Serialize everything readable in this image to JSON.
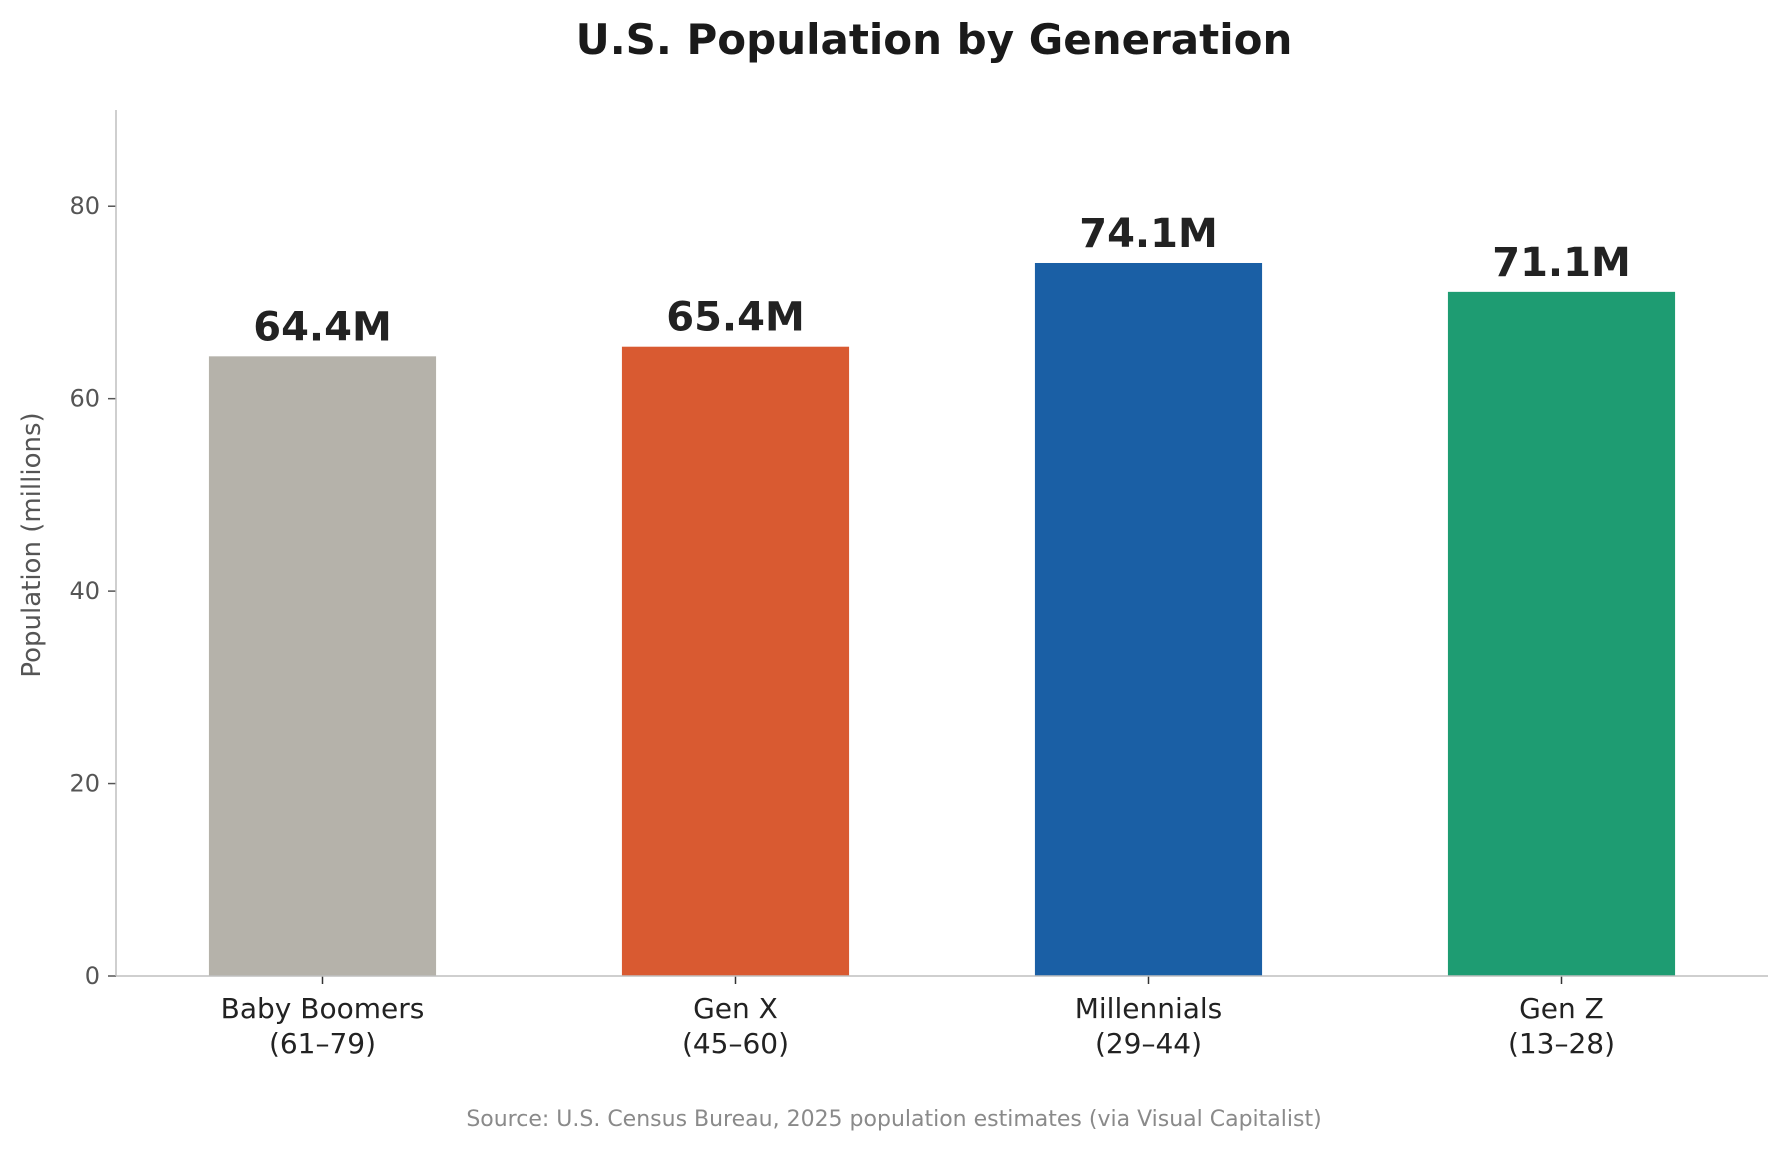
{
  "chart_data": {
    "type": "bar",
    "title": "U.S. Population by Generation",
    "xlabel": "",
    "ylabel": "Population (millions)",
    "ylim": [
      0,
      90
    ],
    "yticks": [
      0,
      20,
      40,
      60,
      80
    ],
    "grid": false,
    "categories": [
      [
        "Baby Boomers",
        "(61–79)"
      ],
      [
        "Gen X",
        "(45–60)"
      ],
      [
        "Millennials",
        "(29–44)"
      ],
      [
        "Gen Z",
        "(13–28)"
      ]
    ],
    "values": [
      64.4,
      65.4,
      74.1,
      71.1
    ],
    "value_labels": [
      "64.4M",
      "65.4M",
      "74.1M",
      "71.1M"
    ],
    "colors": [
      "#b5b2aa",
      "#d95a31",
      "#1a5fa5",
      "#1e9c72"
    ],
    "source": "Source: U.S. Census Bureau, 2025 population estimates (via Visual Capitalist)"
  }
}
